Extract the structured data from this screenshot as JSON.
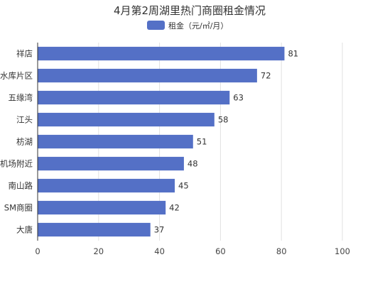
{
  "chart_data": {
    "type": "bar",
    "orientation": "horizontal",
    "title": "4月第2周湖里热门商圈租金情况",
    "categories": [
      "祥店",
      "水库片区",
      "五缘湾",
      "江头",
      "枋湖",
      "机场附近",
      "南山路",
      "SM商圈",
      "大唐"
    ],
    "series": [
      {
        "name": "租金（元/㎡/月）",
        "values": [
          81,
          72,
          63,
          58,
          51,
          48,
          45,
          42,
          37
        ]
      }
    ],
    "xlim": [
      0,
      100
    ],
    "xticks": [
      0,
      20,
      40,
      60,
      80,
      100
    ],
    "grid": true,
    "legend_position": "top-center",
    "bar_color": "#5470c6"
  }
}
